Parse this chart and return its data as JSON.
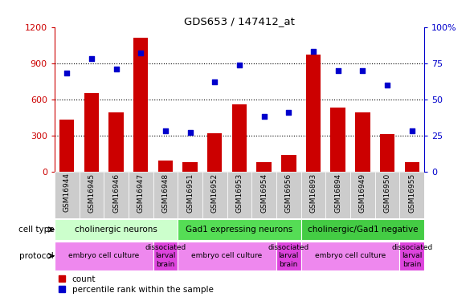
{
  "title": "GDS653 / 147412_at",
  "samples": [
    "GSM16944",
    "GSM16945",
    "GSM16946",
    "GSM16947",
    "GSM16948",
    "GSM16951",
    "GSM16952",
    "GSM16953",
    "GSM16954",
    "GSM16956",
    "GSM16893",
    "GSM16894",
    "GSM16949",
    "GSM16950",
    "GSM16955"
  ],
  "counts": [
    430,
    650,
    490,
    1110,
    90,
    80,
    320,
    555,
    80,
    140,
    970,
    530,
    490,
    310,
    75
  ],
  "percentiles": [
    68,
    78,
    71,
    82,
    28,
    27,
    62,
    74,
    38,
    41,
    83,
    70,
    70,
    60,
    28
  ],
  "bar_color": "#cc0000",
  "dot_color": "#0000cc",
  "ylim_left": [
    0,
    1200
  ],
  "ylim_right": [
    0,
    100
  ],
  "yticks_left": [
    0,
    300,
    600,
    900,
    1200
  ],
  "yticks_right": [
    0,
    25,
    50,
    75,
    100
  ],
  "ytick_labels_right": [
    "0",
    "25",
    "50",
    "75",
    "100%"
  ],
  "cell_type_groups": [
    {
      "label": "cholinergic neurons",
      "start": 0,
      "end": 4,
      "color": "#ccffcc"
    },
    {
      "label": "Gad1 expressing neurons",
      "start": 5,
      "end": 9,
      "color": "#55dd55"
    },
    {
      "label": "cholinergic/Gad1 negative",
      "start": 10,
      "end": 14,
      "color": "#44cc44"
    }
  ],
  "protocol_groups": [
    {
      "label": "embryo cell culture",
      "start": 0,
      "end": 3,
      "color": "#ee88ee"
    },
    {
      "label": "dissociated\nlarval\nbrain",
      "start": 4,
      "end": 4,
      "color": "#dd44dd"
    },
    {
      "label": "embryo cell culture",
      "start": 5,
      "end": 8,
      "color": "#ee88ee"
    },
    {
      "label": "dissociated\nlarval\nbrain",
      "start": 9,
      "end": 9,
      "color": "#dd44dd"
    },
    {
      "label": "embryo cell culture",
      "start": 10,
      "end": 13,
      "color": "#ee88ee"
    },
    {
      "label": "dissociated\nlarval\nbrain",
      "start": 14,
      "end": 14,
      "color": "#dd44dd"
    }
  ],
  "legend_count_label": "count",
  "legend_percentile_label": "percentile rank within the sample",
  "background_color": "#ffffff",
  "xtick_bg_color": "#cccccc",
  "cell_type_label": "cell type",
  "protocol_label": "protocol",
  "label_arrow_color": "#888888"
}
